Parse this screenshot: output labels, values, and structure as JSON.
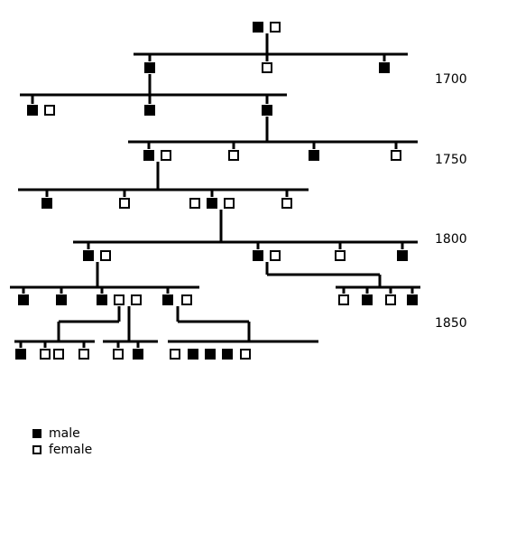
{
  "colors": {
    "line": "#000000",
    "male": "#000000",
    "female": "#ffffff"
  },
  "generation_years": [
    "1700",
    "1750",
    "1800",
    "1850"
  ],
  "legend": {
    "male_label": "male",
    "female_label": "female",
    "male_icon": "filled-square-icon",
    "female_icon": "outlined-square-icon"
  },
  "pedigree": {
    "symbols": {
      "M": "male",
      "F": "female"
    },
    "generations": [
      [
        "M",
        "F"
      ],
      [
        "M",
        "F",
        "M"
      ],
      [
        "M",
        "F",
        "M",
        "M"
      ],
      [
        "M",
        "F",
        "F",
        "M",
        "F"
      ],
      [
        "M",
        "F",
        "F",
        "M",
        "F",
        "F"
      ],
      [
        "M",
        "F",
        "M",
        "F",
        "F",
        "M",
        "M",
        "M",
        "M",
        "F",
        "F",
        "M",
        "F"
      ],
      [
        "F",
        "M",
        "F",
        "M",
        "M",
        "F",
        "F",
        "F",
        "F",
        "M",
        "F",
        "M",
        "M",
        "M",
        "F"
      ]
    ]
  }
}
